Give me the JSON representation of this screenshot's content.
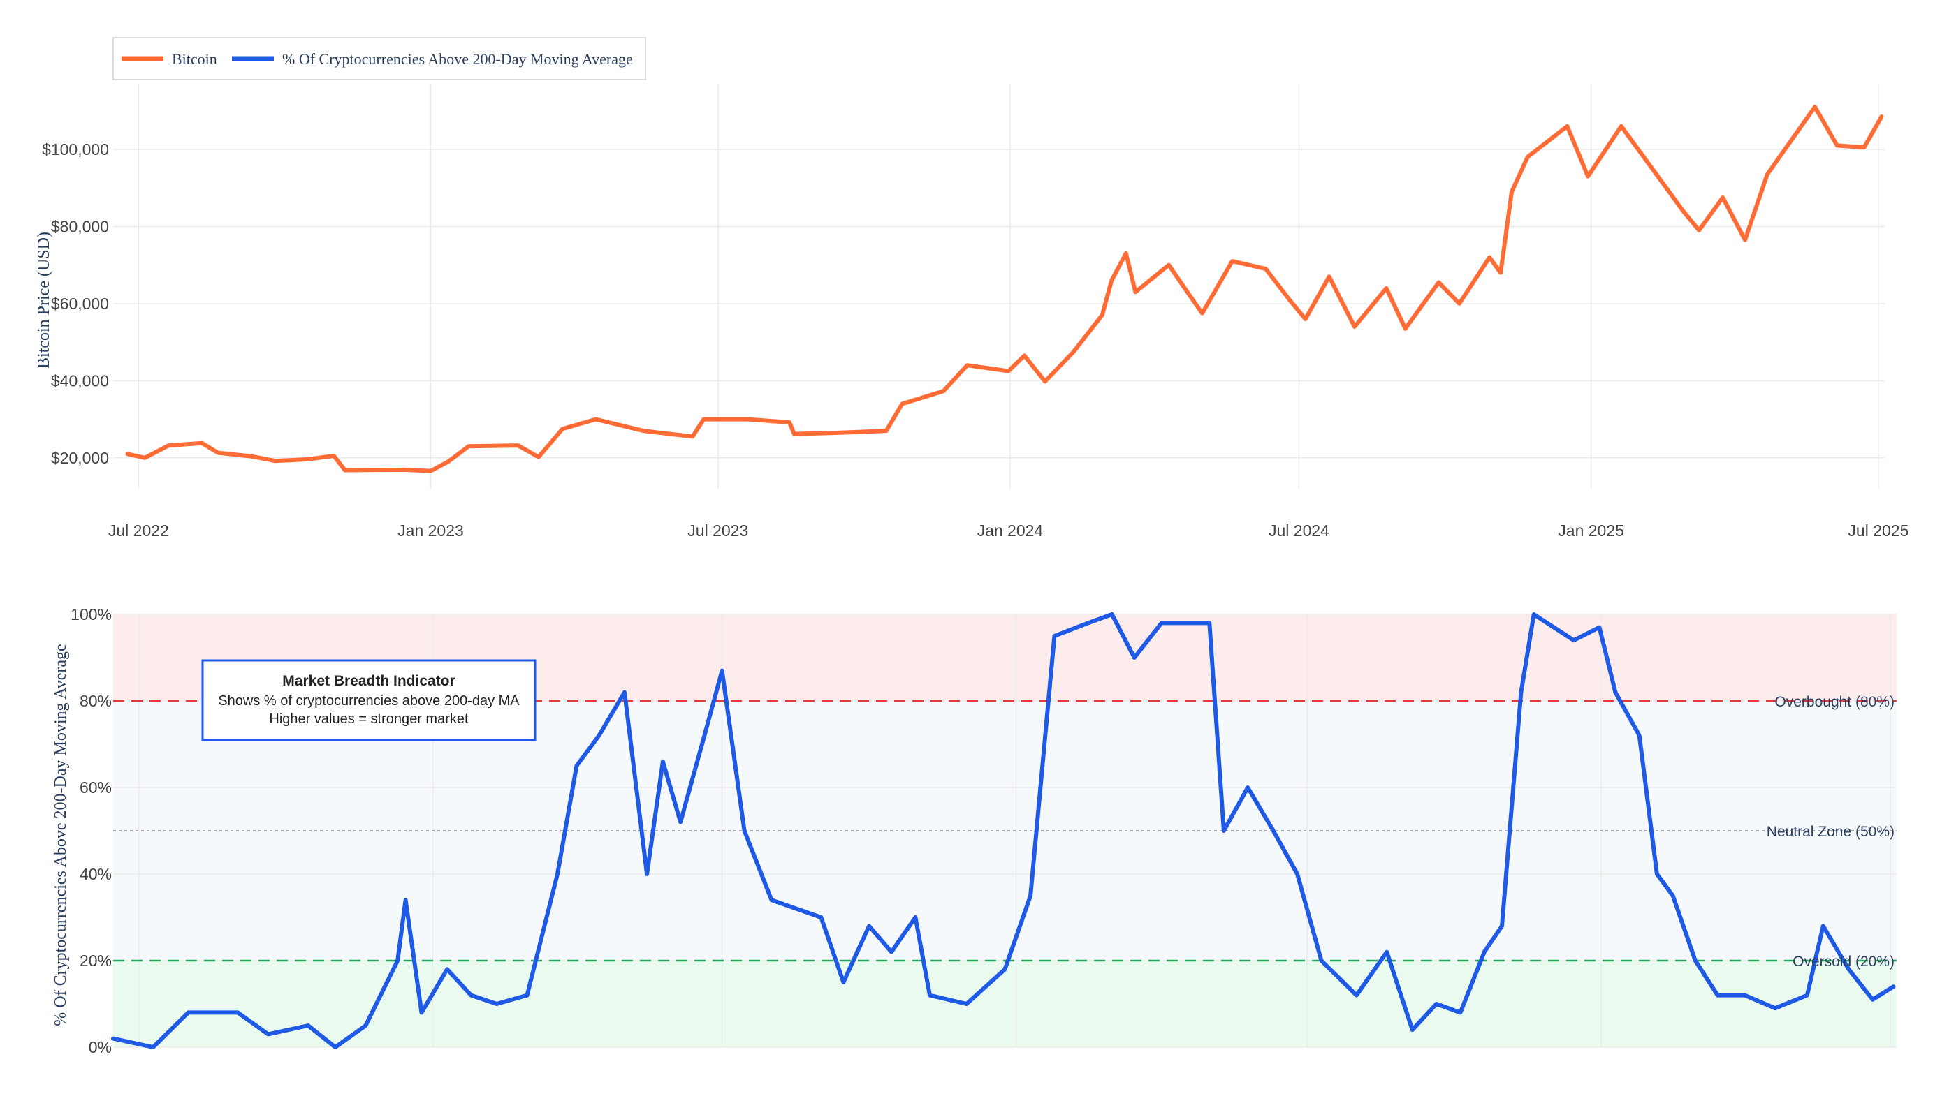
{
  "colors": {
    "bitcoin": "#ff6b35",
    "breadth": "#1f5ae6",
    "overbought": "#e53935",
    "oversold": "#26a65b",
    "neutral": "#888888",
    "grid": "#ebebeb",
    "overbought_fill": "#fdecec",
    "neutral_fill": "#f6f9fc",
    "oversold_fill": "#eafaef"
  },
  "legend": {
    "items": [
      {
        "label": "Bitcoin",
        "color": "#ff6b35"
      },
      {
        "label": "% Of Cryptocurrencies Above 200-Day Moving Average",
        "color": "#1f5ae6"
      }
    ]
  },
  "annotation": {
    "title": "Market Breadth Indicator",
    "line1": "Shows % of cryptocurrencies above 200-day MA",
    "line2": "Higher values = stronger market"
  },
  "chart_data": [
    {
      "type": "line",
      "series": [
        {
          "name": "Bitcoin",
          "points": [
            [
              "2022-06-24",
              21000
            ],
            [
              "2022-07-05",
              20000
            ],
            [
              "2022-07-20",
              23200
            ],
            [
              "2022-08-10",
              23800
            ],
            [
              "2022-08-20",
              21300
            ],
            [
              "2022-09-10",
              20400
            ],
            [
              "2022-09-25",
              19200
            ],
            [
              "2022-10-15",
              19600
            ],
            [
              "2022-11-01",
              20500
            ],
            [
              "2022-11-08",
              16800
            ],
            [
              "2022-12-15",
              16900
            ],
            [
              "2023-01-01",
              16600
            ],
            [
              "2023-01-12",
              19000
            ],
            [
              "2023-01-25",
              23000
            ],
            [
              "2023-02-25",
              23200
            ],
            [
              "2023-03-10",
              20200
            ],
            [
              "2023-03-25",
              27500
            ],
            [
              "2023-04-15",
              30000
            ],
            [
              "2023-05-15",
              27000
            ],
            [
              "2023-06-15",
              25500
            ],
            [
              "2023-06-22",
              30000
            ],
            [
              "2023-07-20",
              30000
            ],
            [
              "2023-08-15",
              29200
            ],
            [
              "2023-08-18",
              26200
            ],
            [
              "2023-09-15",
              26500
            ],
            [
              "2023-10-15",
              27000
            ],
            [
              "2023-10-25",
              34000
            ],
            [
              "2023-11-20",
              37300
            ],
            [
              "2023-12-05",
              44000
            ],
            [
              "2023-12-31",
              42500
            ],
            [
              "2024-01-10",
              46500
            ],
            [
              "2024-01-23",
              39800
            ],
            [
              "2024-02-10",
              47500
            ],
            [
              "2024-02-28",
              57000
            ],
            [
              "2024-03-05",
              66000
            ],
            [
              "2024-03-14",
              73000
            ],
            [
              "2024-03-20",
              63000
            ],
            [
              "2024-04-10",
              70000
            ],
            [
              "2024-04-20",
              64000
            ],
            [
              "2024-05-01",
              57500
            ],
            [
              "2024-05-20",
              71000
            ],
            [
              "2024-06-10",
              69000
            ],
            [
              "2024-06-25",
              61000
            ],
            [
              "2024-07-05",
              56000
            ],
            [
              "2024-07-20",
              67000
            ],
            [
              "2024-08-05",
              54000
            ],
            [
              "2024-08-25",
              64000
            ],
            [
              "2024-09-06",
              53500
            ],
            [
              "2024-09-27",
              65500
            ],
            [
              "2024-10-10",
              60000
            ],
            [
              "2024-10-29",
              72000
            ],
            [
              "2024-11-05",
              68000
            ],
            [
              "2024-11-12",
              89000
            ],
            [
              "2024-11-22",
              98000
            ],
            [
              "2024-12-17",
              106000
            ],
            [
              "2024-12-30",
              93000
            ],
            [
              "2025-01-20",
              106000
            ],
            [
              "2025-02-05",
              97000
            ],
            [
              "2025-02-28",
              84000
            ],
            [
              "2025-03-10",
              79000
            ],
            [
              "2025-03-25",
              87500
            ],
            [
              "2025-04-08",
              76500
            ],
            [
              "2025-04-22",
              93500
            ],
            [
              "2025-05-22",
              111000
            ],
            [
              "2025-06-05",
              101000
            ],
            [
              "2025-06-22",
              100500
            ],
            [
              "2025-07-03",
              108500
            ]
          ]
        }
      ],
      "x_range": [
        "2022-06-15",
        "2025-07-05"
      ],
      "x_ticks": [
        {
          "date": "2022-07-01",
          "label": "Jul 2022"
        },
        {
          "date": "2023-01-01",
          "label": "Jan 2023"
        },
        {
          "date": "2023-07-01",
          "label": "Jul 2023"
        },
        {
          "date": "2024-01-01",
          "label": "Jan 2024"
        },
        {
          "date": "2024-07-01",
          "label": "Jul 2024"
        },
        {
          "date": "2025-01-01",
          "label": "Jan 2025"
        },
        {
          "date": "2025-07-01",
          "label": "Jul 2025"
        }
      ],
      "ylim": [
        12000,
        117000
      ],
      "y_ticks": [
        {
          "value": 20000,
          "label": "$20,000"
        },
        {
          "value": 40000,
          "label": "$40,000"
        },
        {
          "value": 60000,
          "label": "$60,000"
        },
        {
          "value": 80000,
          "label": "$80,000"
        },
        {
          "value": 100000,
          "label": "$100,000"
        }
      ],
      "ylabel": "Bitcoin Price (USD)",
      "grid": true,
      "legend_position": "top-left"
    },
    {
      "type": "line",
      "series": [
        {
          "name": "% Of Cryptocurrencies Above 200-Day Moving Average",
          "points": [
            [
              "2022-06-15",
              2
            ],
            [
              "2022-07-10",
              0
            ],
            [
              "2022-08-01",
              8
            ],
            [
              "2022-09-01",
              8
            ],
            [
              "2022-09-20",
              3
            ],
            [
              "2022-10-15",
              5
            ],
            [
              "2022-11-01",
              0
            ],
            [
              "2022-11-20",
              5
            ],
            [
              "2022-12-10",
              20
            ],
            [
              "2022-12-15",
              34
            ],
            [
              "2022-12-25",
              8
            ],
            [
              "2023-01-10",
              18
            ],
            [
              "2023-01-25",
              12
            ],
            [
              "2023-02-10",
              10
            ],
            [
              "2023-03-01",
              12
            ],
            [
              "2023-03-20",
              40
            ],
            [
              "2023-04-01",
              65
            ],
            [
              "2023-04-15",
              72
            ],
            [
              "2023-05-01",
              82
            ],
            [
              "2023-05-15",
              40
            ],
            [
              "2023-05-25",
              66
            ],
            [
              "2023-06-05",
              52
            ],
            [
              "2023-06-20",
              72
            ],
            [
              "2023-07-01",
              87
            ],
            [
              "2023-07-15",
              50
            ],
            [
              "2023-08-01",
              34
            ],
            [
              "2023-09-01",
              30
            ],
            [
              "2023-09-15",
              15
            ],
            [
              "2023-10-01",
              28
            ],
            [
              "2023-10-15",
              22
            ],
            [
              "2023-10-30",
              30
            ],
            [
              "2023-11-08",
              12
            ],
            [
              "2023-12-01",
              10
            ],
            [
              "2023-12-25",
              18
            ],
            [
              "2024-01-10",
              35
            ],
            [
              "2024-01-25",
              95
            ],
            [
              "2024-02-15",
              98
            ],
            [
              "2024-03-01",
              100
            ],
            [
              "2024-03-15",
              90
            ],
            [
              "2024-04-01",
              98
            ],
            [
              "2024-05-01",
              98
            ],
            [
              "2024-05-10",
              50
            ],
            [
              "2024-05-25",
              60
            ],
            [
              "2024-06-10",
              50
            ],
            [
              "2024-06-25",
              40
            ],
            [
              "2024-07-10",
              20
            ],
            [
              "2024-08-01",
              12
            ],
            [
              "2024-08-20",
              22
            ],
            [
              "2024-09-05",
              4
            ],
            [
              "2024-09-20",
              10
            ],
            [
              "2024-10-05",
              8
            ],
            [
              "2024-10-20",
              22
            ],
            [
              "2024-10-31",
              28
            ],
            [
              "2024-11-12",
              82
            ],
            [
              "2024-11-20",
              100
            ],
            [
              "2024-12-15",
              94
            ],
            [
              "2024-12-31",
              97
            ],
            [
              "2025-01-10",
              82
            ],
            [
              "2025-01-25",
              72
            ],
            [
              "2025-02-05",
              40
            ],
            [
              "2025-02-15",
              35
            ],
            [
              "2025-03-01",
              20
            ],
            [
              "2025-03-15",
              12
            ],
            [
              "2025-04-01",
              12
            ],
            [
              "2025-04-20",
              9
            ],
            [
              "2025-05-10",
              12
            ],
            [
              "2025-05-20",
              28
            ],
            [
              "2025-06-05",
              18
            ],
            [
              "2025-06-20",
              11
            ],
            [
              "2025-07-03",
              14
            ]
          ]
        }
      ],
      "x_range": [
        "2022-06-15",
        "2025-07-05"
      ],
      "ylim": [
        0,
        100
      ],
      "y_ticks": [
        {
          "value": 0,
          "label": "0%"
        },
        {
          "value": 20,
          "label": "20%"
        },
        {
          "value": 40,
          "label": "40%"
        },
        {
          "value": 60,
          "label": "60%"
        },
        {
          "value": 80,
          "label": "80%"
        },
        {
          "value": 100,
          "label": "100%"
        }
      ],
      "ylabel": "% Of Cryptocurrencies Above 200-Day Moving Average",
      "reference_lines": [
        {
          "value": 80,
          "label": "Overbought (80%)",
          "style": "dashed",
          "color": "#e53935"
        },
        {
          "value": 50,
          "label": "Neutral Zone (50%)",
          "style": "dotted",
          "color": "#888888"
        },
        {
          "value": 20,
          "label": "Oversold (20%)",
          "style": "dashed",
          "color": "#26a65b"
        }
      ],
      "grid": true
    }
  ]
}
